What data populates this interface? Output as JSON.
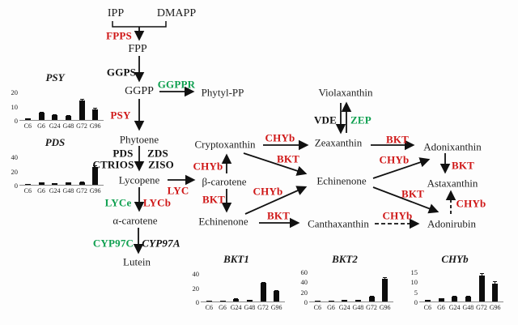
{
  "colors": {
    "enzyme_red": "#cf1616",
    "enzyme_green": "#0fa050",
    "text_black": "#1c1c1c",
    "bar_fill": "#0d0d0d"
  },
  "pathway": {
    "metabolites": {
      "ipp": "IPP",
      "dmapp": "DMAPP",
      "fpp": "FPP",
      "ggpp": "GGPP",
      "phytyl_pp": "Phytyl-PP",
      "phytoene": "Phytoene",
      "lycopene": "Lycopene",
      "alpha_carotene": "α-carotene",
      "lutein": "Lutein",
      "beta_carotene": "β-carotene",
      "cryptoxanthin": "Cryptoxanthin",
      "echinenone_left": "Echinenone",
      "violaxanthin": "Violaxanthin",
      "zeaxanthin": "Zeaxanthin",
      "echinenone_center": "Echinenone",
      "canthaxanthin": "Canthaxanthin",
      "adonixanthin": "Adonixanthin",
      "astaxanthin": "Astaxanthin",
      "adonirubin": "Adonirubin"
    },
    "enzymes": {
      "fpps": "FPPS",
      "ggps": "GGPS",
      "ggppr": "GGPPR",
      "psy": "PSY",
      "pds": "PDS",
      "zds": "ZDS",
      "ctrios": "CTRIOS",
      "ziso": "ZISO",
      "lyc": "LYC",
      "lyce": "LYCe",
      "lycb": "LYCb",
      "cyp97c": "CYP97C",
      "cyp97a": "CYP97A",
      "chyb_beta_to_crypto": "CHYb",
      "bkt_beta_to_echi": "BKT",
      "chyb_crypto_to_zea": "CHYb",
      "bkt_crypto_to_echi": "BKT",
      "chyb_echi_to_echi": "CHYb",
      "bkt_echi_to_cantha": "BKT",
      "vde": "VDE",
      "zep": "ZEP",
      "bkt_zea_to_adonix": "BKT",
      "chyb_echi_to_adonix": "CHYb",
      "bkt_adonix_to_asta": "BKT",
      "bkt_echi_to_adonirubin": "BKT",
      "chyb_cantha_to_adonirubin": "CHYb",
      "chyb_adonirubin_to_asta": "CHYb"
    }
  },
  "chart_data": [
    {
      "type": "bar",
      "title": "PSY",
      "categories": [
        "C6",
        "G6",
        "G24",
        "G48",
        "G72",
        "G96"
      ],
      "values": [
        1,
        5,
        3.5,
        3,
        13.5,
        7.5
      ],
      "errors": [
        0.3,
        0.8,
        0.5,
        0.5,
        1.3,
        0.9
      ],
      "yticks": [
        0,
        10,
        20
      ],
      "ylim": [
        0,
        24
      ],
      "xlabel": "",
      "ylabel": ""
    },
    {
      "type": "bar",
      "title": "PDS",
      "categories": [
        "C6",
        "G6",
        "G24",
        "G48",
        "G72",
        "G96"
      ],
      "values": [
        0.5,
        3,
        2,
        3,
        4,
        25
      ],
      "errors": [
        0.2,
        0.5,
        0.4,
        0.5,
        0.9,
        2
      ],
      "yticks": [
        0,
        20,
        40
      ],
      "ylim": [
        0,
        48
      ],
      "xlabel": "",
      "ylabel": ""
    },
    {
      "type": "bar",
      "title": "BKT1",
      "categories": [
        "C6",
        "G6",
        "G24",
        "G48",
        "G72",
        "G96"
      ],
      "values": [
        0.5,
        1.5,
        4,
        2.5,
        26,
        15
      ],
      "errors": [
        0.2,
        0.3,
        0.7,
        0.5,
        2,
        1.5
      ],
      "yticks": [
        0,
        20,
        40
      ],
      "ylim": [
        0,
        48
      ],
      "xlabel": "",
      "ylabel": ""
    },
    {
      "type": "bar",
      "title": "BKT2",
      "categories": [
        "C6",
        "G6",
        "G24",
        "G48",
        "G72",
        "G96"
      ],
      "values": [
        1,
        2,
        3,
        4,
        10,
        45
      ],
      "errors": [
        0.2,
        0.3,
        0.5,
        0.6,
        1,
        4
      ],
      "yticks": [
        0,
        20,
        40,
        60
      ],
      "ylim": [
        0,
        68
      ],
      "xlabel": "",
      "ylabel": ""
    },
    {
      "type": "bar",
      "title": "CHYb",
      "categories": [
        "C6",
        "G6",
        "G24",
        "G48",
        "G72",
        "G96"
      ],
      "values": [
        1,
        1.5,
        2.5,
        2.5,
        13,
        9
      ],
      "errors": [
        0.2,
        0.3,
        0.4,
        0.4,
        1,
        1
      ],
      "yticks": [
        0,
        5,
        10,
        15
      ],
      "ylim": [
        0,
        17
      ],
      "xlabel": "",
      "ylabel": ""
    }
  ]
}
